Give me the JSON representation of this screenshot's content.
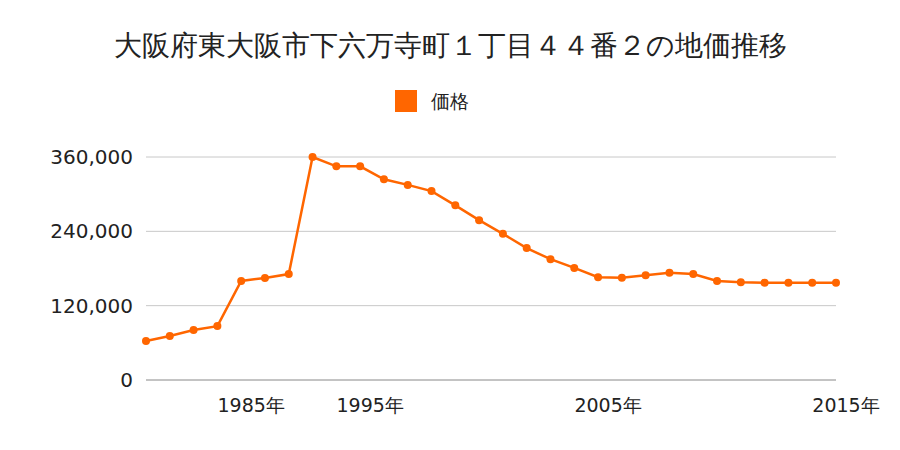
{
  "chart_data": {
    "type": "line",
    "title": "大阪府東大阪市下六万寺町１丁目４４番２の地価推移",
    "categories": [
      null,
      null,
      null,
      null,
      "1985年",
      null,
      null,
      null,
      null,
      "1995年",
      null,
      null,
      null,
      null,
      null,
      null,
      null,
      null,
      null,
      "2005年",
      null,
      null,
      null,
      null,
      null,
      null,
      null,
      null,
      null,
      "2015年"
    ],
    "series": [
      {
        "name": "価格",
        "color": "#ff6600",
        "marker": "circle",
        "values": [
          63000,
          71000,
          80700,
          87000,
          160000,
          164700,
          171000,
          360000,
          345000,
          345000,
          324000,
          315000,
          305000,
          282000,
          258000,
          236000,
          213000,
          195000,
          181000,
          166000,
          165000,
          169000,
          173000,
          171000,
          160000,
          158000,
          157000,
          157000,
          157000,
          157000
        ]
      }
    ],
    "ylim": [
      0,
      360000
    ],
    "yticks": [
      0,
      {
        "value": 120000,
        "label": "120,000"
      },
      {
        "value": 240000,
        "label": "240,000"
      },
      {
        "value": 360000,
        "label": "360,000"
      }
    ],
    "grid": true,
    "legend": "top"
  }
}
